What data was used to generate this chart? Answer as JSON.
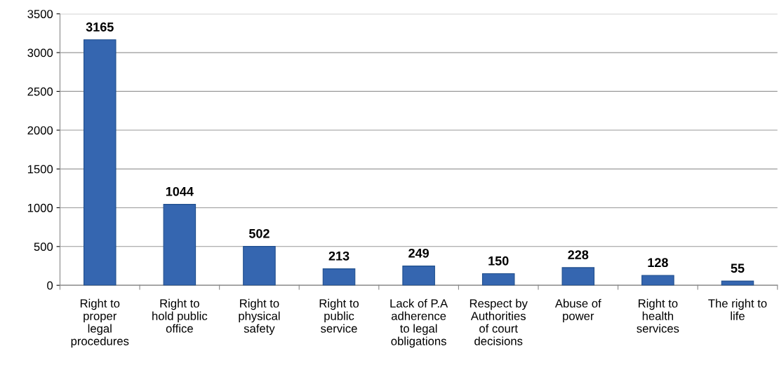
{
  "chart_data": {
    "type": "bar",
    "categories": [
      "Right to\nproper\nlegal\nprocedures",
      "Right to\nhold public\noffice",
      "Right to\nphysical\nsafety",
      "Right to\npublic\nservice",
      "Lack of P.A\nadherence\nto legal\nobligations",
      "Respect by\nAuthorities\nof court\ndecisions",
      "Abuse of\npower",
      "Right to\nhealth\nservices",
      "The right to\nlife"
    ],
    "values": [
      3165,
      1044,
      502,
      213,
      249,
      150,
      228,
      128,
      55
    ],
    "color": "#3566b0",
    "ylim": [
      0,
      3500
    ],
    "yticks": [
      0,
      500,
      1000,
      1500,
      2000,
      2500,
      3000,
      3500
    ],
    "grid": "y",
    "data_labels": true
  }
}
